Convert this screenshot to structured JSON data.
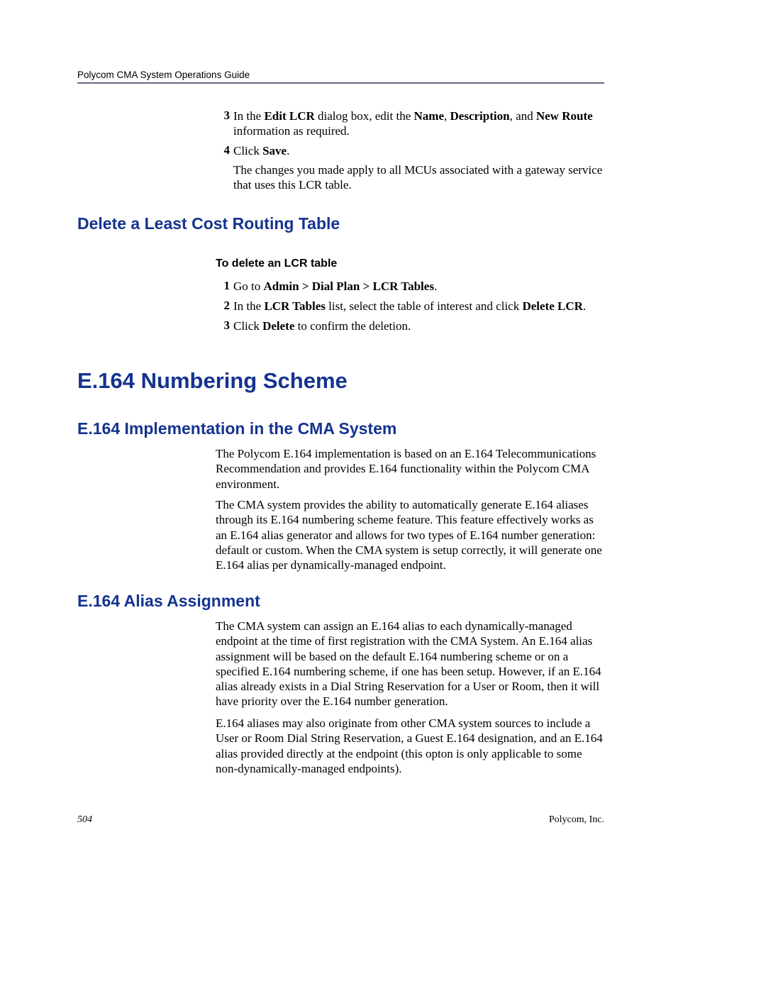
{
  "header": {
    "running_head": "Polycom CMA System Operations Guide"
  },
  "steps_top": [
    {
      "num": "3",
      "html": "In the <b>Edit LCR</b> dialog box, edit the <b>Name</b>, <b>Description</b>, and <b>New Route</b> information as required."
    },
    {
      "num": "4",
      "html": "Click <b>Save</b>."
    }
  ],
  "after_step4": "The changes you made apply to all MCUs associated with a gateway service that uses this LCR table.",
  "section_delete": {
    "title": "Delete a Least Cost Routing Table",
    "procedure_label": "To delete an LCR table",
    "steps": [
      {
        "num": "1",
        "html": "Go to <b>Admin > Dial Plan > LCR Tables</b>."
      },
      {
        "num": "2",
        "html": "In the <b>LCR Tables</b> list, select the table of interest and click <b>Delete LCR</b>."
      },
      {
        "num": "3",
        "html": "Click <b>Delete</b> to confirm the deletion."
      }
    ]
  },
  "section_e164": {
    "title": "E.164 Numbering Scheme",
    "impl": {
      "title": "E.164 Implementation in the CMA System",
      "paras": [
        "The Polycom E.164 implementation is based on an E.164 Telecommunications Recommendation and provides E.164 functionality within the Polycom CMA environment.",
        "The CMA system provides the ability to automatically generate E.164 aliases through its E.164 numbering scheme feature. This feature effectively works as an E.164 alias generator and allows for two types of E.164 number generation: default or custom. When the CMA system is setup correctly, it will generate one E.164 alias per dynamically-managed endpoint."
      ]
    },
    "alias": {
      "title": "E.164 Alias Assignment",
      "paras": [
        "The CMA system can assign an E.164 alias to each dynamically-managed endpoint at the time of first registration with the CMA System. An E.164 alias assignment will be based on the default E.164 numbering scheme or on a specified E.164 numbering scheme, if one has been setup. However, if an E.164 alias already exists in a Dial String Reservation for a User or Room, then it will have priority over the E.164 number generation.",
        "E.164 aliases may also originate from other CMA system sources to include a User or Room Dial String Reservation, a Guest E.164 designation, and an E.164 alias provided directly at the endpoint (this opton is only applicable to some non-dynamically-managed endpoints)."
      ]
    }
  },
  "footer": {
    "page_number": "504",
    "company": "Polycom, Inc."
  },
  "colors": {
    "heading": "#15338f",
    "rule": "#676782",
    "text": "#000000",
    "background": "#ffffff"
  }
}
